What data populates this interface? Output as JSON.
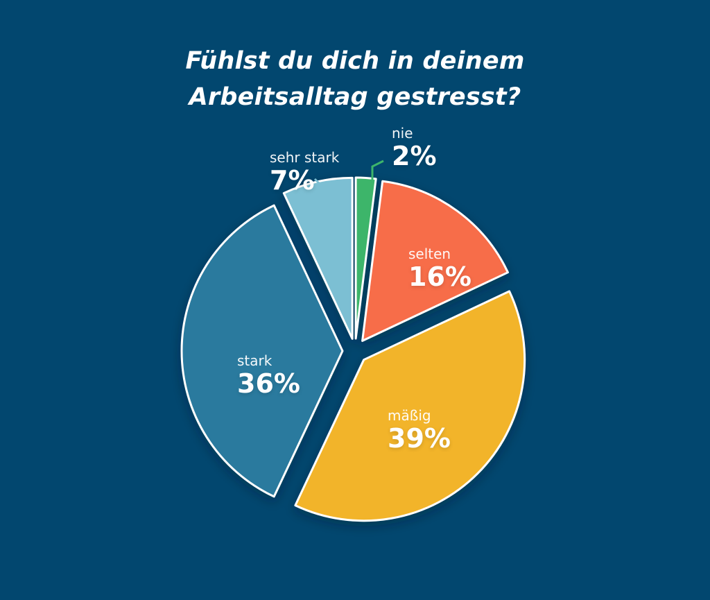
{
  "title": {
    "line1": "Fühlst du dich in deinem",
    "line2": "Arbeitsalltag gestresst?"
  },
  "background_color": "#02476f",
  "chart_data": {
    "type": "pie",
    "title": "Fühlst du dich in deinem Arbeitsalltag gestresst?",
    "start_angle": "12 o'clock, clockwise",
    "exploded": true,
    "unit": "%",
    "slices": [
      {
        "label": "nie",
        "value": 2,
        "display": "2%",
        "color": "#3db56b"
      },
      {
        "label": "selten",
        "value": 16,
        "display": "16%",
        "color": "#f76d4a"
      },
      {
        "label": "mäßig",
        "value": 39,
        "display": "39%",
        "color": "#f2b42c"
      },
      {
        "label": "stark",
        "value": 36,
        "display": "36%",
        "color": "#2a7a9e"
      },
      {
        "label": "sehr stark",
        "value": 7,
        "display": "7%",
        "color": "#7cbfd3"
      }
    ]
  },
  "labels": {
    "nie": {
      "name": "nie",
      "pct": "2%"
    },
    "selten": {
      "name": "selten",
      "pct": "16%"
    },
    "maessig": {
      "name": "mäßig",
      "pct": "39%"
    },
    "stark": {
      "name": "stark",
      "pct": "36%"
    },
    "sehr_stark": {
      "name": "sehr stark",
      "pct": "7%"
    }
  }
}
